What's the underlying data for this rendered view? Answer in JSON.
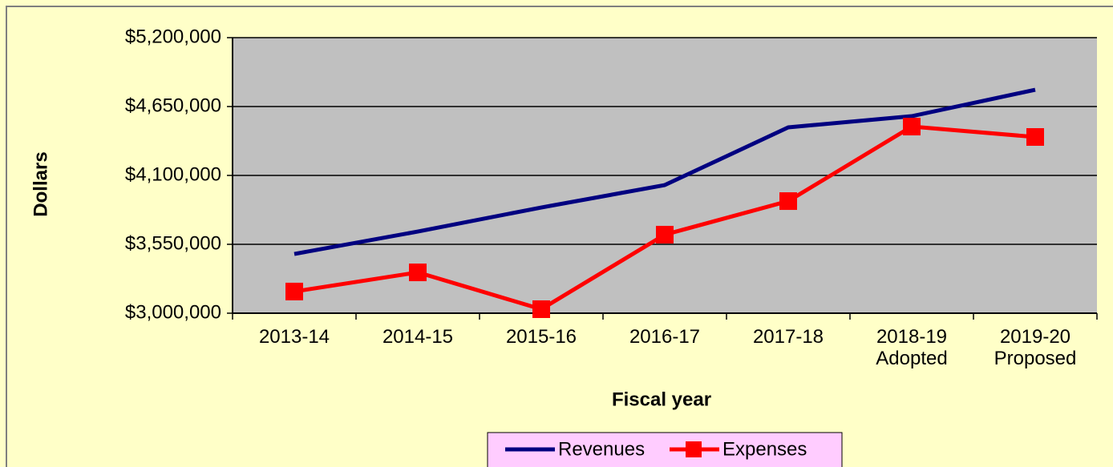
{
  "chart_data": {
    "type": "line",
    "x_label": "Fiscal year",
    "y_label": "Dollars",
    "categories": [
      "2013-14",
      "2014-15",
      "2015-16",
      "2016-17",
      "2017-18",
      "2018-19\nAdopted",
      "2019-20\nProposed"
    ],
    "series": [
      {
        "name": "Revenues",
        "color": "#000080",
        "marker": "none",
        "values": [
          3473000,
          3652000,
          3844000,
          4023000,
          4484000,
          4573000,
          4784000
        ]
      },
      {
        "name": "Expenses",
        "color": "#ff0000",
        "marker": "square",
        "values": [
          3173000,
          3326000,
          3032000,
          3627000,
          3895000,
          4490000,
          4407000
        ]
      }
    ],
    "ylim": [
      3000000,
      5200000
    ],
    "yticks": [
      {
        "value": 3000000,
        "label": "$3,000,000"
      },
      {
        "value": 3550000,
        "label": "$3,550,000"
      },
      {
        "value": 4100000,
        "label": "$4,100,000"
      },
      {
        "value": 4650000,
        "label": "$4,650,000"
      },
      {
        "value": 5200000,
        "label": "$5,200,000"
      }
    ],
    "grid": true,
    "legend": "bottom"
  }
}
